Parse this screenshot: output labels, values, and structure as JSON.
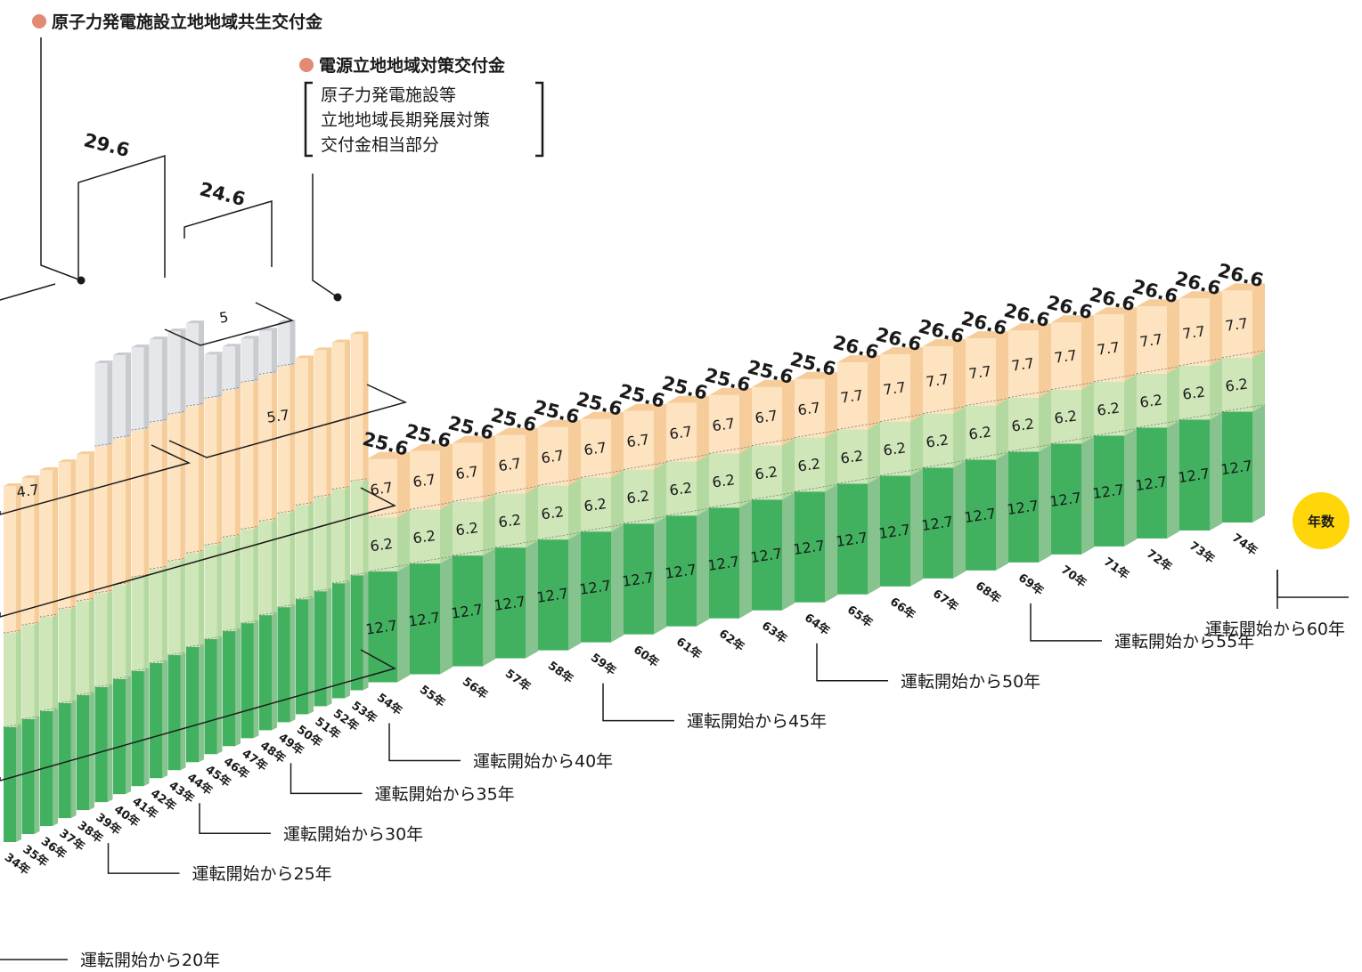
{
  "legend": {
    "kyosei_label": "原子力発電施設立地地域共生交付金",
    "taisaku_label": "電源立地地域対策交付金",
    "taisaku_sub": [
      "原子力発電施設等",
      "立地地域長期発展対策",
      "交付金相当部分"
    ],
    "bullet_color": "#e28a73"
  },
  "badge_label": "年数",
  "colors": {
    "green_dark_front": "#41b15f",
    "green_dark_side": "#86c38e",
    "green_light_front": "#cfe6b8",
    "green_light_side": "#b4d9a0",
    "peach_front": "#fde3bf",
    "peach_side": "#f6cc9a",
    "gray_front": "#e6e7ea",
    "gray_side": "#c9cbcf",
    "badge": "#ffd60a"
  },
  "chart_data": {
    "type": "bar",
    "stacked": true,
    "categories": [
      "34年",
      "35年",
      "36年",
      "37年",
      "38年",
      "39年",
      "40年",
      "41年",
      "42年",
      "43年",
      "44年",
      "45年",
      "46年",
      "47年",
      "48年",
      "49年",
      "50年",
      "51年",
      "52年",
      "53年",
      "54年",
      "55年",
      "56年",
      "57年",
      "58年",
      "59年",
      "60年",
      "61年",
      "62年",
      "63年",
      "64年",
      "65年",
      "66年",
      "67年",
      "68年",
      "69年",
      "70年",
      "71年",
      "72年",
      "73年",
      "74年"
    ],
    "series": [
      {
        "key": "bottom",
        "values": [
          null,
          null,
          null,
          null,
          null,
          null,
          null,
          null,
          null,
          null,
          null,
          null,
          null,
          null,
          null,
          null,
          null,
          null,
          null,
          null,
          12.7,
          12.7,
          12.7,
          12.7,
          12.7,
          12.7,
          12.7,
          12.7,
          12.7,
          12.7,
          12.7,
          12.7,
          12.7,
          12.7,
          12.7,
          12.7,
          12.7,
          12.7,
          12.7,
          12.7,
          12.7
        ]
      },
      {
        "key": "middle",
        "values": [
          null,
          null,
          null,
          null,
          null,
          null,
          null,
          null,
          null,
          null,
          null,
          null,
          null,
          null,
          null,
          null,
          null,
          null,
          null,
          null,
          6.2,
          6.2,
          6.2,
          6.2,
          6.2,
          6.2,
          6.2,
          6.2,
          6.2,
          6.2,
          6.2,
          6.2,
          6.2,
          6.2,
          6.2,
          6.2,
          6.2,
          6.2,
          6.2,
          6.2,
          6.2
        ]
      },
      {
        "key": "top",
        "values": [
          4.7,
          4.7,
          4.7,
          4.7,
          4.7,
          4.7,
          4.7,
          4.7,
          4.7,
          4.7,
          4.7,
          4.7,
          4.7,
          5.7,
          5.7,
          5.7,
          5.7,
          5.7,
          5.7,
          5.7,
          6.7,
          6.7,
          6.7,
          6.7,
          6.7,
          6.7,
          6.7,
          6.7,
          6.7,
          6.7,
          6.7,
          7.7,
          7.7,
          7.7,
          7.7,
          7.7,
          7.7,
          7.7,
          7.7,
          7.7,
          7.7
        ]
      },
      {
        "key": "kyosei",
        "values": [
          null,
          null,
          null,
          null,
          null,
          null,
          null,
          null,
          null,
          null,
          null,
          null,
          null,
          null,
          null,
          null,
          null,
          null,
          null,
          null,
          null,
          null,
          null,
          null,
          null,
          null,
          null,
          null,
          null,
          null,
          null,
          null,
          null,
          null,
          null,
          null,
          null,
          null,
          null,
          null,
          null
        ]
      }
    ],
    "totals": [
      null,
      null,
      null,
      null,
      null,
      null,
      null,
      null,
      null,
      null,
      null,
      null,
      null,
      null,
      null,
      null,
      null,
      null,
      null,
      null,
      25.6,
      25.6,
      25.6,
      25.6,
      25.6,
      25.6,
      25.6,
      25.6,
      25.6,
      25.6,
      25.6,
      26.6,
      26.6,
      26.6,
      26.6,
      26.6,
      26.6,
      26.6,
      26.6,
      26.6,
      26.6
    ],
    "annotations": {
      "kyosei_group_a": {
        "total": "29.6",
        "value": "5"
      },
      "kyosei_group_b": {
        "total": "24.6",
        "value": "5"
      },
      "segment_5_7": "5.7",
      "segment_4_7": "4.7"
    },
    "milestones": [
      {
        "category": "34年",
        "label": "運転開始から20年"
      },
      {
        "category": "39年",
        "label": "運転開始から25年"
      },
      {
        "category": "44年",
        "label": "運転開始から30年"
      },
      {
        "category": "49年",
        "label": "運転開始から35年"
      },
      {
        "category": "54年",
        "label": "運転開始から40年"
      },
      {
        "category": "59年",
        "label": "運転開始から45年"
      },
      {
        "category": "64年",
        "label": "運転開始から50年"
      },
      {
        "category": "69年",
        "label": "運転開始から55年"
      },
      {
        "category": "74年",
        "label": "運転開始から60年"
      }
    ]
  }
}
